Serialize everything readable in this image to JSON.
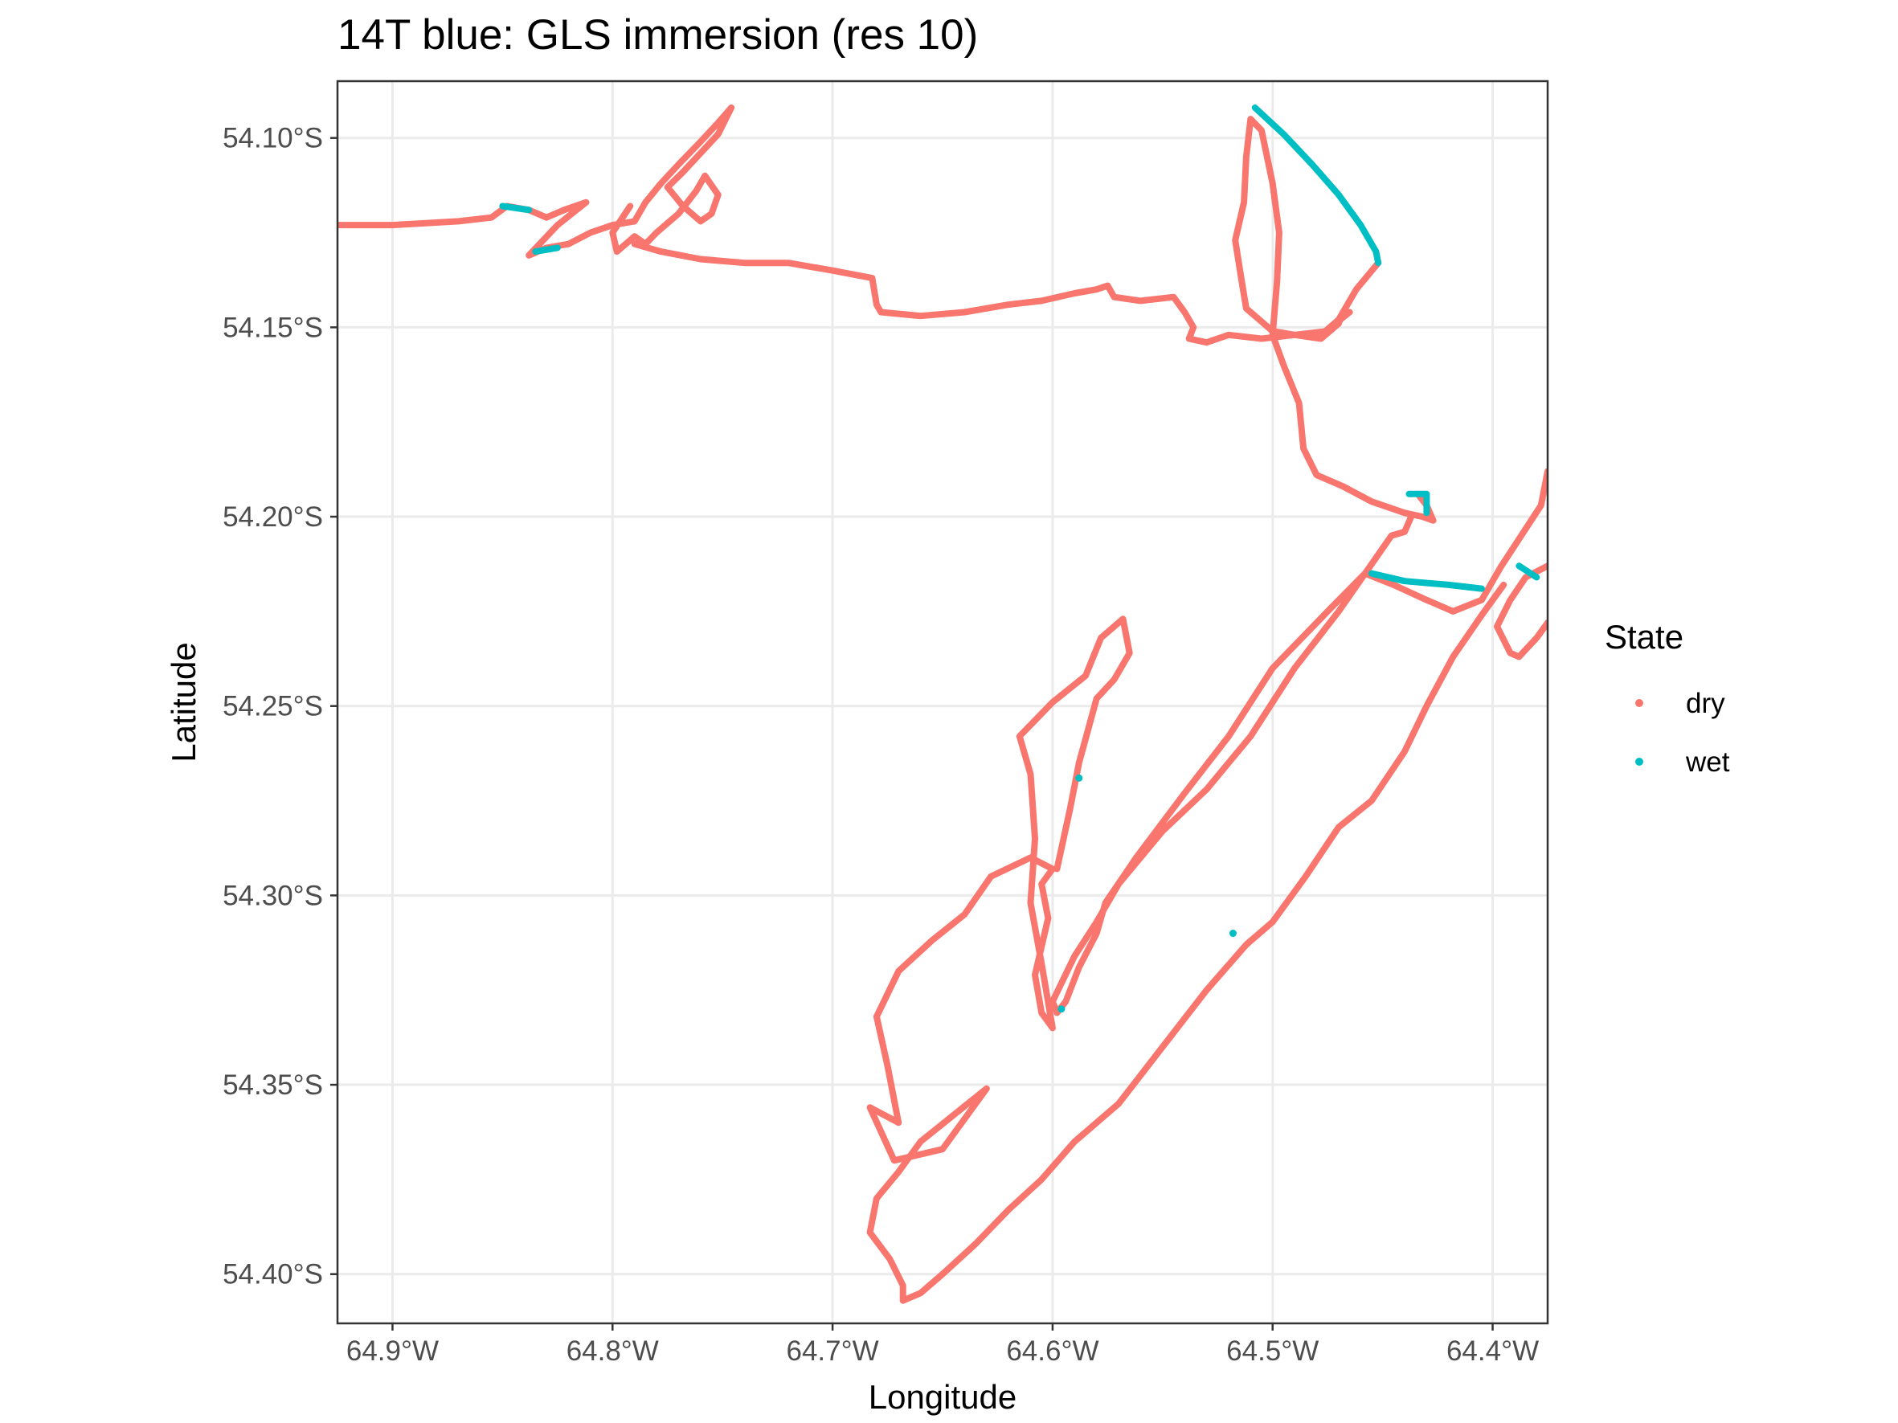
{
  "chart_data": {
    "type": "scatter",
    "title": "14T blue: GLS immersion (res 10)",
    "xlabel": "Longitude",
    "ylabel": "Latitude",
    "xlim": [
      -64.925,
      -64.375
    ],
    "ylim": [
      -54.413,
      -54.085
    ],
    "x_ticks": [
      -64.9,
      -64.8,
      -64.7,
      -64.6,
      -64.5,
      -64.4
    ],
    "x_tick_labels": [
      "64.9°W",
      "64.8°W",
      "64.7°W",
      "64.6°W",
      "64.5°W",
      "64.4°W"
    ],
    "y_ticks": [
      -54.1,
      -54.15,
      -54.2,
      -54.25,
      -54.3,
      -54.35,
      -54.4
    ],
    "y_tick_labels": [
      "54.10°S",
      "54.15°S",
      "54.20°S",
      "54.25°S",
      "54.30°S",
      "54.35°S",
      "54.40°S"
    ],
    "grid": true,
    "legend": {
      "title": "State",
      "position": "right"
    },
    "series": [
      {
        "name": "dry",
        "color": "#F8766D",
        "tracks": [
          [
            [
              -64.925,
              -54.123
            ],
            [
              -64.9,
              -54.123
            ],
            [
              -64.87,
              -54.122
            ],
            [
              -64.855,
              -54.121
            ],
            [
              -64.848,
              -54.118
            ],
            [
              -64.838,
              -54.119
            ],
            [
              -64.83,
              -54.121
            ],
            [
              -64.822,
              -54.119
            ],
            [
              -64.812,
              -54.117
            ],
            [
              -64.825,
              -54.123
            ],
            [
              -64.838,
              -54.131
            ],
            [
              -64.83,
              -54.129
            ],
            [
              -64.82,
              -54.128
            ],
            [
              -64.81,
              -54.125
            ],
            [
              -64.8,
              -54.123
            ],
            [
              -64.79,
              -54.122
            ],
            [
              -64.785,
              -54.117
            ],
            [
              -64.778,
              -54.112
            ],
            [
              -64.77,
              -54.107
            ],
            [
              -64.76,
              -54.101
            ],
            [
              -64.752,
              -54.096
            ],
            [
              -64.746,
              -54.092
            ],
            [
              -64.752,
              -54.099
            ],
            [
              -64.76,
              -54.104
            ],
            [
              -64.768,
              -54.109
            ],
            [
              -64.775,
              -54.113
            ],
            [
              -64.768,
              -54.118
            ],
            [
              -64.76,
              -54.122
            ],
            [
              -64.755,
              -54.12
            ],
            [
              -64.752,
              -54.115
            ],
            [
              -64.758,
              -54.11
            ],
            [
              -64.762,
              -54.114
            ],
            [
              -64.77,
              -54.12
            ],
            [
              -64.78,
              -54.125
            ],
            [
              -64.785,
              -54.128
            ],
            [
              -64.79,
              -54.126
            ],
            [
              -64.798,
              -54.13
            ],
            [
              -64.8,
              -54.125
            ],
            [
              -64.792,
              -54.118
            ]
          ],
          [
            [
              -64.79,
              -54.128
            ],
            [
              -64.778,
              -54.13
            ],
            [
              -64.76,
              -54.132
            ],
            [
              -64.74,
              -54.133
            ],
            [
              -64.72,
              -54.133
            ],
            [
              -64.7,
              -54.135
            ],
            [
              -64.682,
              -54.137
            ],
            [
              -64.68,
              -54.144
            ],
            [
              -64.678,
              -54.146
            ],
            [
              -64.66,
              -54.147
            ],
            [
              -64.64,
              -54.146
            ],
            [
              -64.62,
              -54.144
            ],
            [
              -64.605,
              -54.143
            ],
            [
              -64.59,
              -54.141
            ],
            [
              -64.58,
              -54.14
            ],
            [
              -64.575,
              -54.139
            ],
            [
              -64.572,
              -54.142
            ],
            [
              -64.56,
              -54.143
            ],
            [
              -64.545,
              -54.142
            ],
            [
              -64.54,
              -54.146
            ],
            [
              -64.536,
              -54.15
            ],
            [
              -64.538,
              -54.153
            ],
            [
              -64.53,
              -54.154
            ],
            [
              -64.52,
              -54.152
            ],
            [
              -64.505,
              -54.153
            ],
            [
              -64.49,
              -54.152
            ],
            [
              -64.478,
              -54.153
            ],
            [
              -64.47,
              -54.149
            ],
            [
              -64.468,
              -54.146
            ]
          ],
          [
            [
              -64.475,
              -54.151
            ],
            [
              -64.49,
              -54.152
            ],
            [
              -64.5,
              -54.151
            ],
            [
              -64.512,
              -54.145
            ],
            [
              -64.514,
              -54.138
            ],
            [
              -64.517,
              -54.127
            ],
            [
              -64.513,
              -54.117
            ],
            [
              -64.512,
              -54.105
            ],
            [
              -64.51,
              -54.095
            ],
            [
              -64.505,
              -54.098
            ],
            [
              -64.5,
              -54.112
            ],
            [
              -64.497,
              -54.125
            ],
            [
              -64.498,
              -54.138
            ],
            [
              -64.5,
              -54.152
            ],
            [
              -64.495,
              -54.16
            ],
            [
              -64.488,
              -54.17
            ],
            [
              -64.486,
              -54.182
            ],
            [
              -64.48,
              -54.189
            ],
            [
              -64.468,
              -54.192
            ],
            [
              -64.455,
              -54.196
            ],
            [
              -64.44,
              -54.199
            ],
            [
              -64.432,
              -54.2
            ],
            [
              -64.427,
              -54.201
            ],
            [
              -64.43,
              -54.197
            ],
            [
              -64.434,
              -54.194
            ]
          ],
          [
            [
              -64.452,
              -54.133
            ],
            [
              -64.462,
              -54.14
            ],
            [
              -64.47,
              -54.148
            ],
            [
              -64.478,
              -54.152
            ],
            [
              -64.465,
              -54.146
            ]
          ],
          [
            [
              -64.437,
              -54.2
            ],
            [
              -64.44,
              -54.204
            ],
            [
              -64.446,
              -54.205
            ],
            [
              -64.452,
              -54.21
            ],
            [
              -64.47,
              -54.225
            ],
            [
              -64.49,
              -54.24
            ],
            [
              -64.51,
              -54.258
            ],
            [
              -64.53,
              -54.272
            ],
            [
              -64.55,
              -54.283
            ],
            [
              -64.57,
              -54.297
            ],
            [
              -64.58,
              -54.307
            ],
            [
              -64.59,
              -54.316
            ],
            [
              -64.6,
              -54.328
            ],
            [
              -64.598,
              -54.331
            ],
            [
              -64.594,
              -54.328
            ],
            [
              -64.588,
              -54.319
            ],
            [
              -64.58,
              -54.31
            ],
            [
              -64.576,
              -54.302
            ],
            [
              -64.562,
              -54.29
            ],
            [
              -64.54,
              -54.273
            ],
            [
              -64.52,
              -54.258
            ],
            [
              -64.5,
              -54.24
            ],
            [
              -64.475,
              -54.225
            ],
            [
              -64.458,
              -54.215
            ],
            [
              -64.445,
              -54.218
            ],
            [
              -64.43,
              -54.222
            ],
            [
              -64.418,
              -54.225
            ],
            [
              -64.405,
              -54.222
            ],
            [
              -64.396,
              -54.213
            ],
            [
              -64.378,
              -54.197
            ],
            [
              -64.375,
              -54.188
            ]
          ],
          [
            [
              -64.375,
              -54.213
            ],
            [
              -64.385,
              -54.216
            ],
            [
              -64.392,
              -54.222
            ],
            [
              -64.398,
              -54.229
            ],
            [
              -64.392,
              -54.236
            ],
            [
              -64.388,
              -54.237
            ],
            [
              -64.38,
              -54.232
            ],
            [
              -64.375,
              -54.228
            ]
          ],
          [
            [
              -64.395,
              -54.218
            ],
            [
              -64.405,
              -54.226
            ],
            [
              -64.418,
              -54.237
            ],
            [
              -64.43,
              -54.25
            ],
            [
              -64.44,
              -54.262
            ],
            [
              -64.455,
              -54.275
            ],
            [
              -64.47,
              -54.282
            ],
            [
              -64.485,
              -54.295
            ],
            [
              -64.5,
              -54.307
            ],
            [
              -64.512,
              -54.313
            ],
            [
              -64.53,
              -54.325
            ],
            [
              -64.55,
              -54.34
            ],
            [
              -64.57,
              -54.355
            ],
            [
              -64.59,
              -54.365
            ],
            [
              -64.605,
              -54.375
            ],
            [
              -64.62,
              -54.383
            ],
            [
              -64.635,
              -54.392
            ],
            [
              -64.65,
              -54.4
            ],
            [
              -64.66,
              -54.405
            ],
            [
              -64.668,
              -54.407
            ],
            [
              -64.668,
              -54.403
            ],
            [
              -64.674,
              -54.396
            ],
            [
              -64.683,
              -54.389
            ],
            [
              -64.68,
              -54.38
            ],
            [
              -64.67,
              -54.373
            ],
            [
              -64.66,
              -54.365
            ],
            [
              -64.645,
              -54.358
            ],
            [
              -64.63,
              -54.351
            ],
            [
              -64.65,
              -54.367
            ],
            [
              -64.672,
              -54.37
            ],
            [
              -64.683,
              -54.356
            ],
            [
              -64.67,
              -54.36
            ],
            [
              -64.675,
              -54.345
            ],
            [
              -64.68,
              -54.332
            ],
            [
              -64.67,
              -54.32
            ],
            [
              -64.655,
              -54.312
            ],
            [
              -64.64,
              -54.305
            ],
            [
              -64.628,
              -54.295
            ],
            [
              -64.61,
              -54.29
            ],
            [
              -64.6,
              -54.293
            ],
            [
              -64.605,
              -54.297
            ],
            [
              -64.602,
              -54.306
            ],
            [
              -64.608,
              -54.321
            ],
            [
              -64.605,
              -54.331
            ],
            [
              -64.6,
              -54.335
            ],
            [
              -64.605,
              -54.318
            ],
            [
              -64.61,
              -54.302
            ],
            [
              -64.608,
              -54.285
            ],
            [
              -64.61,
              -54.268
            ],
            [
              -64.615,
              -54.258
            ],
            [
              -64.6,
              -54.249
            ],
            [
              -64.585,
              -54.242
            ],
            [
              -64.578,
              -54.232
            ],
            [
              -64.568,
              -54.227
            ],
            [
              -64.565,
              -54.236
            ],
            [
              -64.572,
              -54.243
            ],
            [
              -64.58,
              -54.248
            ],
            [
              -64.588,
              -54.265
            ],
            [
              -64.592,
              -54.277
            ],
            [
              -64.598,
              -54.293
            ]
          ]
        ]
      },
      {
        "name": "wet",
        "color": "#00BFC4",
        "tracks": [
          [
            [
              -64.508,
              -54.092
            ],
            [
              -64.495,
              -54.099
            ],
            [
              -64.482,
              -54.107
            ],
            [
              -64.47,
              -54.115
            ],
            [
              -64.46,
              -54.123
            ],
            [
              -64.453,
              -54.13
            ],
            [
              -64.452,
              -54.133
            ]
          ],
          [
            [
              -64.85,
              -54.118
            ],
            [
              -64.838,
              -54.119
            ]
          ],
          [
            [
              -64.835,
              -54.13
            ],
            [
              -64.825,
              -54.129
            ]
          ],
          [
            [
              -64.438,
              -54.194
            ],
            [
              -64.43,
              -54.194
            ],
            [
              -64.43,
              -54.199
            ]
          ],
          [
            [
              -64.455,
              -54.215
            ],
            [
              -64.44,
              -54.217
            ],
            [
              -64.42,
              -54.218
            ],
            [
              -64.405,
              -54.219
            ]
          ],
          [
            [
              -64.388,
              -54.213
            ],
            [
              -64.38,
              -54.216
            ]
          ],
          [
            [
              -64.588,
              -54.269
            ]
          ],
          [
            [
              -64.596,
              -54.33
            ]
          ],
          [
            [
              -64.518,
              -54.31
            ]
          ]
        ]
      }
    ]
  }
}
